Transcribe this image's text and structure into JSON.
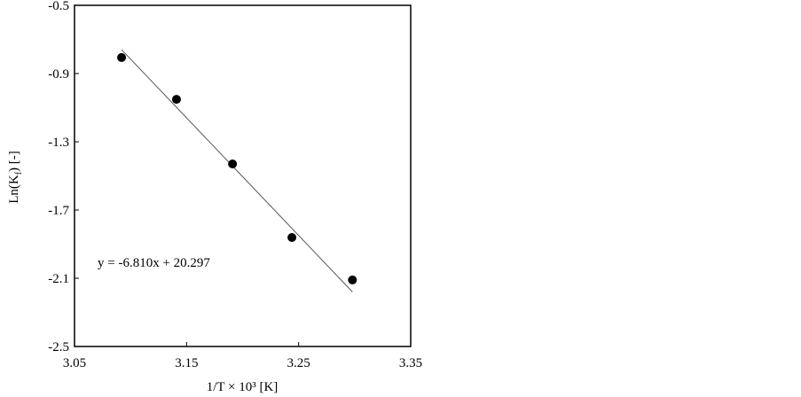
{
  "chart_data": {
    "type": "scatter",
    "x_label": "1/T × 10³ [K]",
    "y_label_parts": [
      "Ln(K",
      "f",
      ") [-]"
    ],
    "annotation": "y = -6.810x + 20.297",
    "xlim": [
      3.05,
      3.35
    ],
    "xticks": [
      3.05,
      3.15,
      3.25,
      3.35
    ],
    "ylim": [
      -2.5,
      -0.5
    ],
    "yticks": [
      -0.5,
      -0.9,
      -1.3,
      -1.7,
      -2.1,
      -2.5
    ],
    "series": [
      {
        "x": [
          3.092,
          3.141,
          3.191,
          3.244,
          3.298
        ],
        "values": [
          -0.806,
          -1.051,
          -1.43,
          -1.861,
          -2.11
        ],
        "color": "#000000"
      }
    ],
    "trendline": {
      "x": [
        3.092,
        3.298
      ],
      "values": [
        -0.76,
        -2.18
      ],
      "color": "#555555"
    }
  }
}
